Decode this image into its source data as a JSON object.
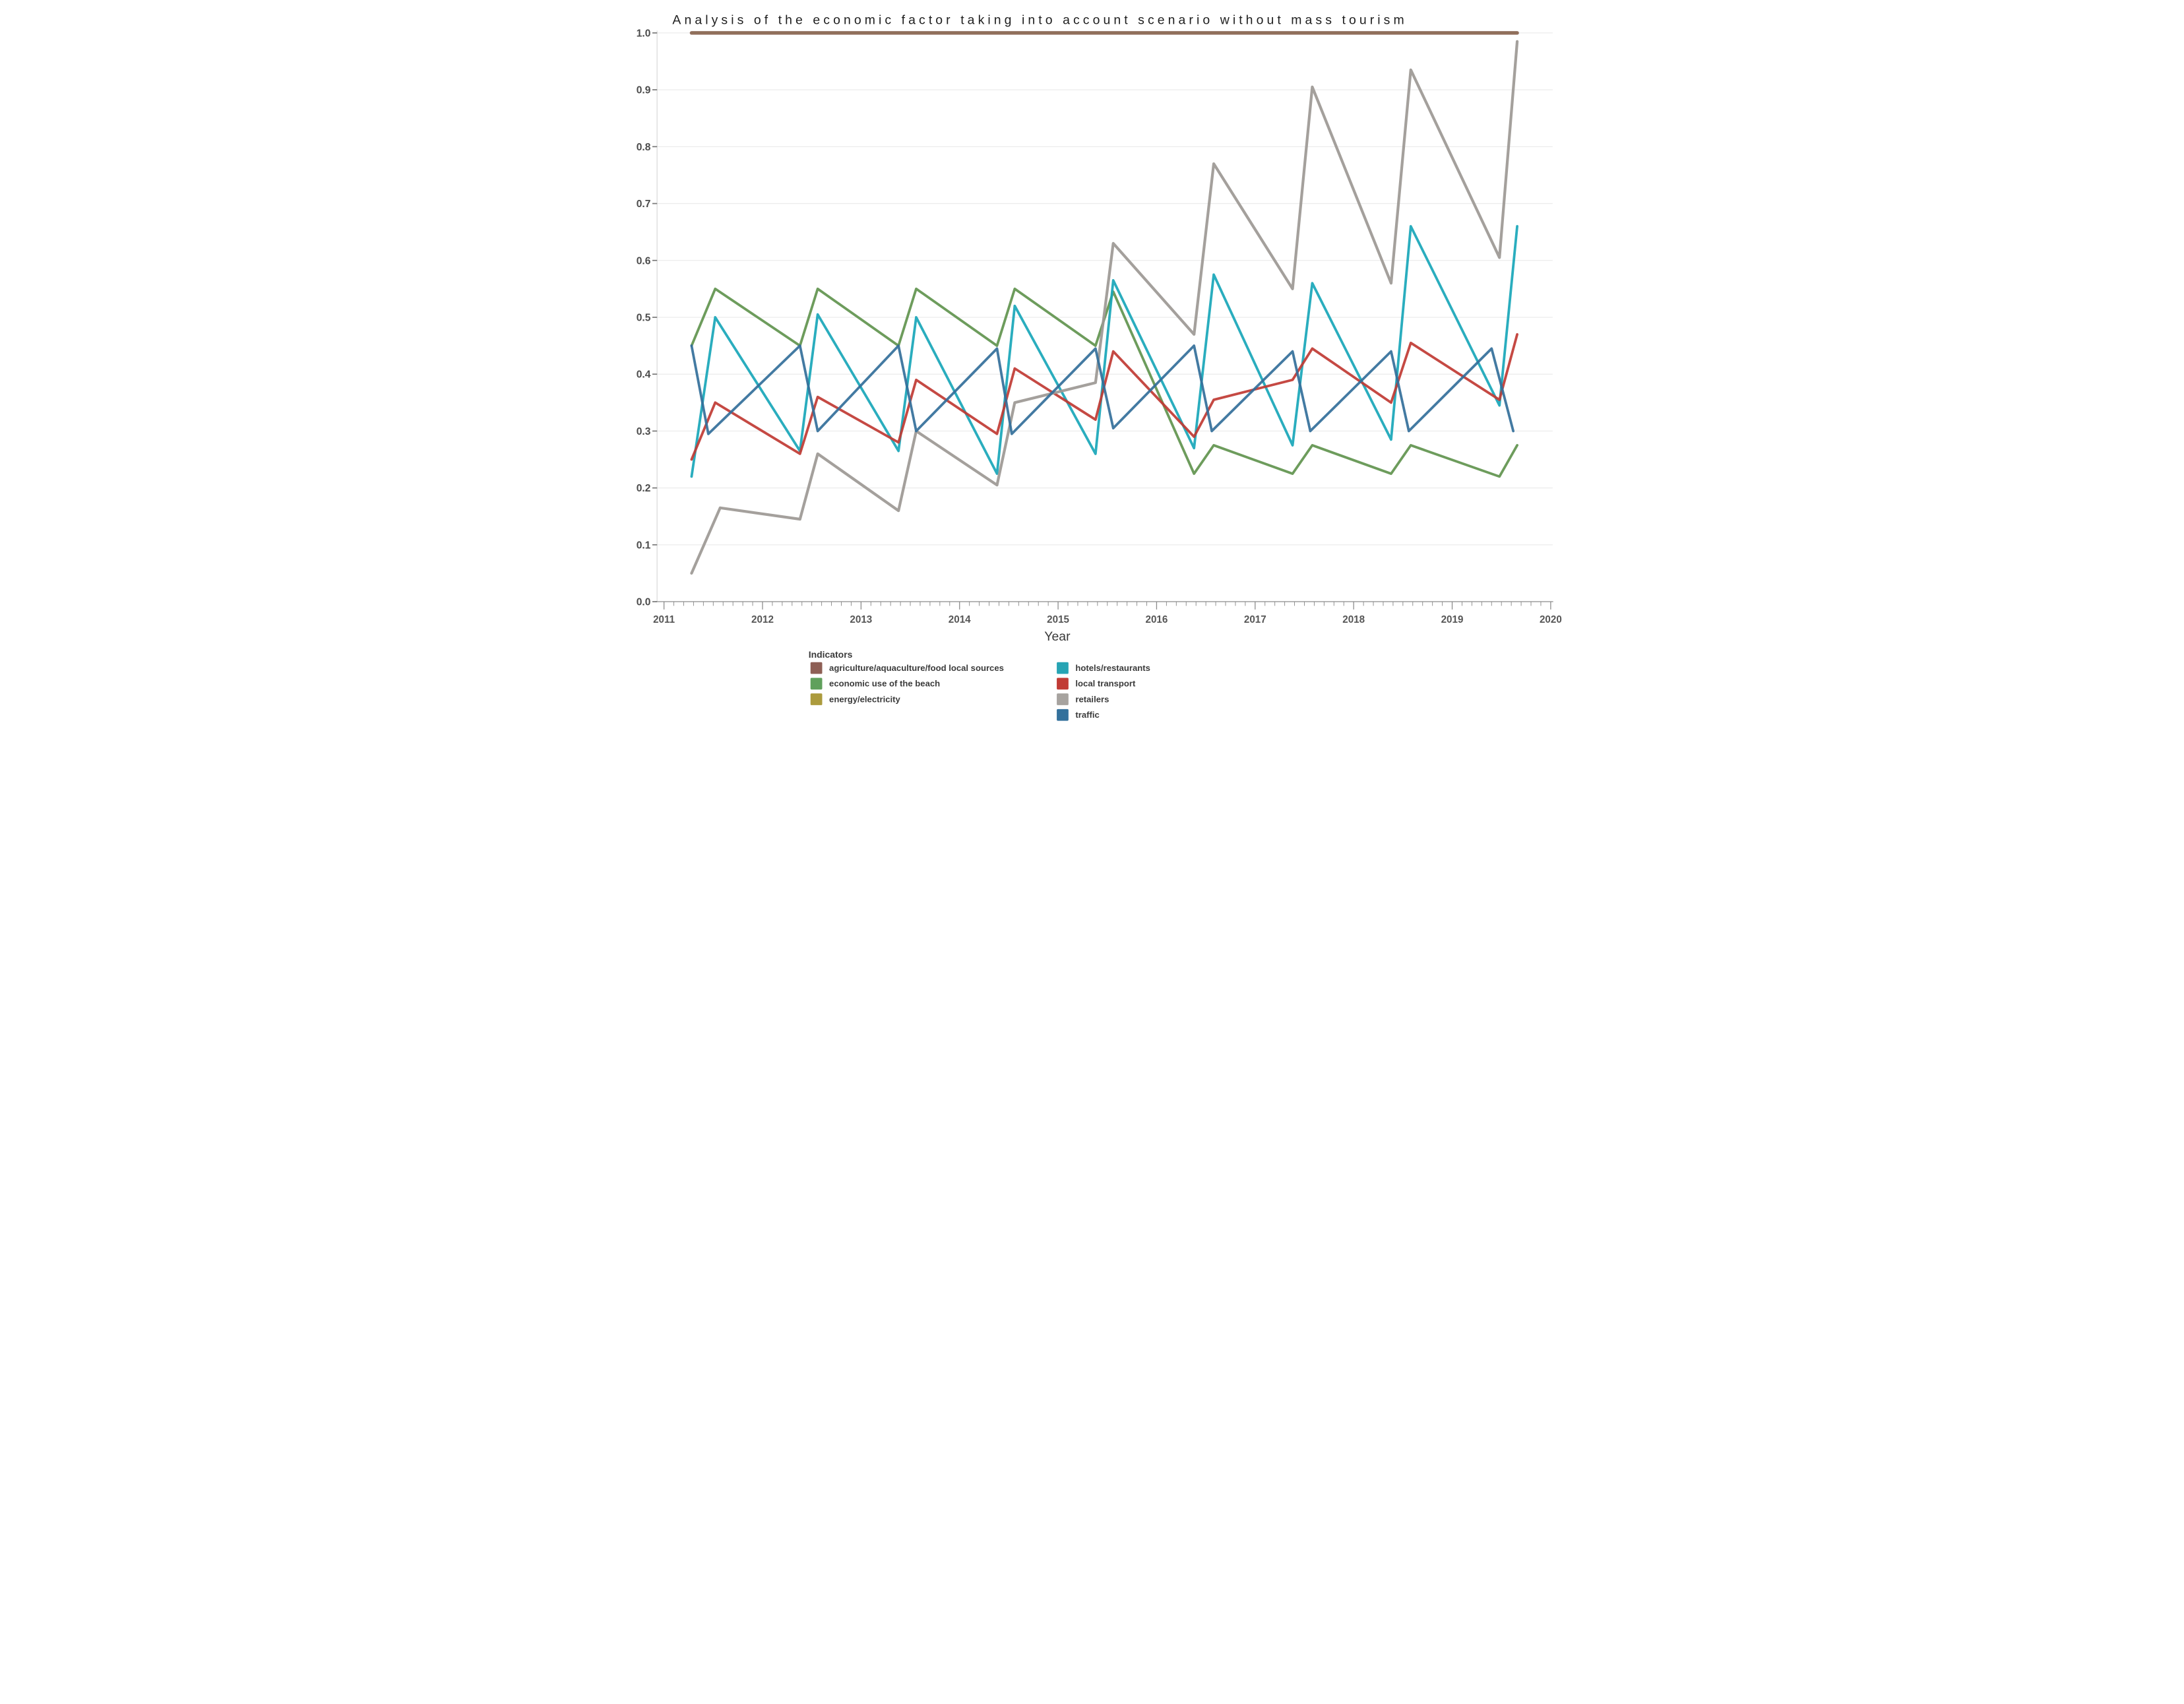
{
  "page": {
    "background": "#ffffff"
  },
  "chart_data": {
    "type": "line",
    "title": "Analysis of the economic factor taking into account scenario without mass tourism",
    "xlabel": "Year",
    "ylabel": "",
    "xlim": [
      2010.93,
      2020.02
    ],
    "ylim": [
      0.0,
      1.0
    ],
    "xticks": [
      2011,
      2012,
      2013,
      2014,
      2015,
      2016,
      2017,
      2018,
      2019,
      2020
    ],
    "x_minor_step": 0.1,
    "yticks": [
      0.0,
      0.1,
      0.2,
      0.3,
      0.4,
      0.5,
      0.6,
      0.7,
      0.8,
      0.9,
      1.0
    ],
    "grid": true,
    "legend_position": "bottom",
    "series": [
      {
        "name": "energy/electricity",
        "color": "#ac9b3d",
        "width": 9,
        "x": [
          2011.28,
          2019.66
        ],
        "y": [
          1.0,
          1.0
        ]
      },
      {
        "name": "agriculture/aquaculture/food local sources",
        "color": "#8d6a5b",
        "width": 13,
        "x": [
          2011.28,
          2019.66
        ],
        "y": [
          1.0,
          1.0
        ]
      },
      {
        "name": "economic use of the beach",
        "color": "#61944e",
        "width": 9,
        "x": [
          2011.28,
          2011.52,
          2012.38,
          2012.56,
          2013.38,
          2013.56,
          2014.38,
          2014.56,
          2015.38,
          2015.56,
          2016.38,
          2016.58,
          2017.38,
          2017.58,
          2018.38,
          2018.58,
          2019.48,
          2019.66
        ],
        "y": [
          0.45,
          0.55,
          0.45,
          0.55,
          0.45,
          0.55,
          0.45,
          0.55,
          0.45,
          0.545,
          0.225,
          0.275,
          0.225,
          0.275,
          0.225,
          0.275,
          0.22,
          0.275
        ]
      },
      {
        "name": "hotels/restaurants",
        "color": "#18a6b8",
        "width": 9,
        "x": [
          2011.28,
          2011.52,
          2012.38,
          2012.56,
          2013.38,
          2013.56,
          2014.38,
          2014.56,
          2015.38,
          2015.56,
          2016.38,
          2016.58,
          2017.38,
          2017.58,
          2018.38,
          2018.58,
          2019.48,
          2019.66
        ],
        "y": [
          0.22,
          0.5,
          0.265,
          0.505,
          0.265,
          0.5,
          0.225,
          0.52,
          0.26,
          0.565,
          0.27,
          0.575,
          0.275,
          0.56,
          0.285,
          0.66,
          0.345,
          0.66
        ]
      },
      {
        "name": "local transport",
        "color": "#c03a33",
        "width": 9,
        "x": [
          2011.28,
          2011.52,
          2012.38,
          2012.56,
          2013.38,
          2013.56,
          2014.38,
          2014.56,
          2015.38,
          2015.56,
          2016.38,
          2016.58,
          2017.38,
          2017.58,
          2018.38,
          2018.58,
          2019.48,
          2019.66
        ],
        "y": [
          0.25,
          0.35,
          0.26,
          0.36,
          0.28,
          0.39,
          0.295,
          0.41,
          0.32,
          0.44,
          0.29,
          0.355,
          0.39,
          0.445,
          0.35,
          0.455,
          0.355,
          0.47
        ]
      },
      {
        "name": "retailers",
        "color": "#9c9894",
        "width": 10,
        "x": [
          2011.28,
          2011.57,
          2012.38,
          2012.56,
          2013.38,
          2013.56,
          2014.38,
          2014.56,
          2015.38,
          2015.56,
          2016.38,
          2016.58,
          2017.38,
          2017.58,
          2018.38,
          2018.58,
          2019.48,
          2019.66
        ],
        "y": [
          0.05,
          0.165,
          0.145,
          0.26,
          0.16,
          0.3,
          0.205,
          0.35,
          0.385,
          0.63,
          0.47,
          0.77,
          0.55,
          0.905,
          0.56,
          0.935,
          0.605,
          0.985
        ]
      },
      {
        "name": "traffic",
        "color": "#336f9a",
        "width": 9,
        "x": [
          2011.28,
          2011.45,
          2012.38,
          2012.56,
          2013.38,
          2013.56,
          2014.38,
          2014.53,
          2015.38,
          2015.56,
          2016.38,
          2016.56,
          2017.38,
          2017.56,
          2018.38,
          2018.56,
          2019.4,
          2019.62
        ],
        "y": [
          0.45,
          0.295,
          0.45,
          0.3,
          0.45,
          0.3,
          0.445,
          0.295,
          0.445,
          0.305,
          0.45,
          0.3,
          0.44,
          0.3,
          0.44,
          0.3,
          0.445,
          0.3
        ]
      }
    ]
  },
  "legend": {
    "title": "Indicators",
    "items": [
      {
        "label": "agriculture/aquaculture/food local sources",
        "color": "#8e5f55"
      },
      {
        "label": "economic use of the beach",
        "color": "#60a05c"
      },
      {
        "label": "energy/electricity",
        "color": "#ac9b3d"
      },
      {
        "label": "hotels/restaurants",
        "color": "#27a4b4"
      },
      {
        "label": "local transport",
        "color": "#c13b35"
      },
      {
        "label": "retailers",
        "color": "#a7a39f"
      },
      {
        "label": "traffic",
        "color": "#34719c"
      }
    ]
  }
}
